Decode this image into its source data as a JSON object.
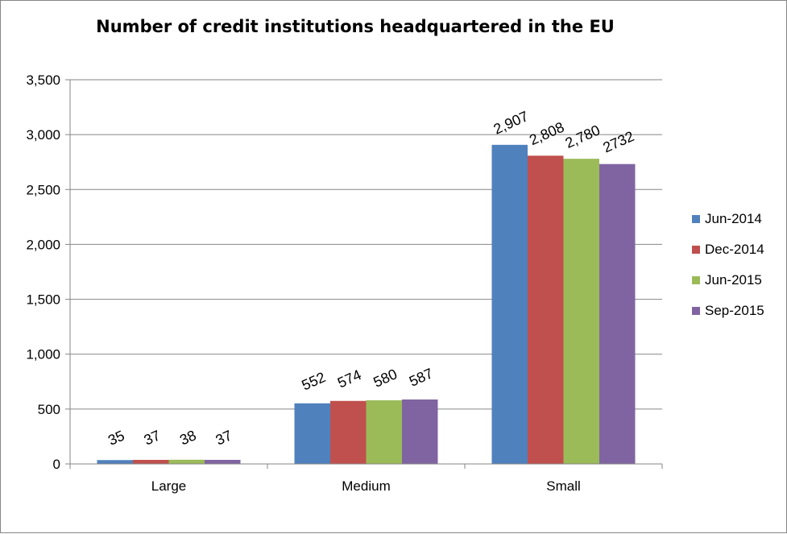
{
  "chart_data": {
    "type": "bar",
    "title": "Number of credit institutions headquartered in the EU",
    "xlabel": "",
    "ylabel": "",
    "categories": [
      "Large",
      "Medium",
      "Small"
    ],
    "ylim": [
      0,
      3500
    ],
    "yticks": [
      0,
      500,
      1000,
      1500,
      2000,
      2500,
      3000,
      3500
    ],
    "ytick_labels": [
      "0",
      "500",
      "1,000",
      "1,500",
      "2,000",
      "2,500",
      "3,000",
      "3,500"
    ],
    "grid": true,
    "legend_position": "right",
    "series": [
      {
        "name": "Jun-2014",
        "color": "#4f81bd",
        "values": [
          35,
          552,
          2907
        ],
        "labels": [
          "35",
          "552",
          "2,907"
        ]
      },
      {
        "name": "Dec-2014",
        "color": "#c0504d",
        "values": [
          37,
          574,
          2808
        ],
        "labels": [
          "37",
          "574",
          "2,808"
        ]
      },
      {
        "name": "Jun-2015",
        "color": "#9bbb59",
        "values": [
          38,
          580,
          2780
        ],
        "labels": [
          "38",
          "580",
          "2,780"
        ]
      },
      {
        "name": "Sep-2015",
        "color": "#8064a2",
        "values": [
          37,
          587,
          2732
        ],
        "labels": [
          "37",
          "587",
          "2732"
        ]
      }
    ]
  }
}
